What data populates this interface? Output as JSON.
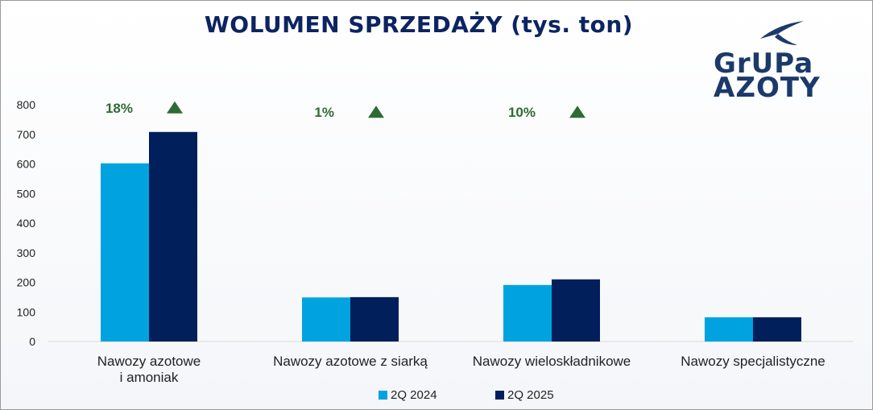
{
  "title": "WOLUMEN SPRZEDAŻY (tys. ton)",
  "logo": {
    "line1": "GrUPa",
    "line2": "AZOTY"
  },
  "colors": {
    "title": "#0c2461",
    "series_2024": "#00a3df",
    "series_2025": "#001f5b",
    "growth": "#2e6b34"
  },
  "chart_data": {
    "type": "bar",
    "title": "WOLUMEN SPRZEDAŻY (tys. ton)",
    "xlabel": "",
    "ylabel": "",
    "ylim": [
      0,
      800
    ],
    "yticks": [
      0,
      100,
      200,
      300,
      400,
      500,
      600,
      700,
      800
    ],
    "grid": false,
    "legend_position": "bottom",
    "categories": [
      [
        "Nawozy azotowe",
        "i amoniak"
      ],
      [
        "Nawozy azotowe z siarką"
      ],
      [
        "Nawozy wieloskładnikowe"
      ],
      [
        "Nawozy specjalistyczne"
      ]
    ],
    "series": [
      {
        "name": "2Q 2024",
        "values": [
          602,
          149,
          191,
          82
        ],
        "color": "#00a3df"
      },
      {
        "name": "2Q 2025",
        "values": [
          708,
          150,
          210,
          82
        ],
        "color": "#001f5b"
      }
    ],
    "annotations": [
      {
        "category_index": 0,
        "text": "18%",
        "marker": "up-triangle"
      },
      {
        "category_index": 1,
        "text": "1%",
        "marker": "up-triangle"
      },
      {
        "category_index": 2,
        "text": "10%",
        "marker": "up-triangle"
      }
    ]
  }
}
